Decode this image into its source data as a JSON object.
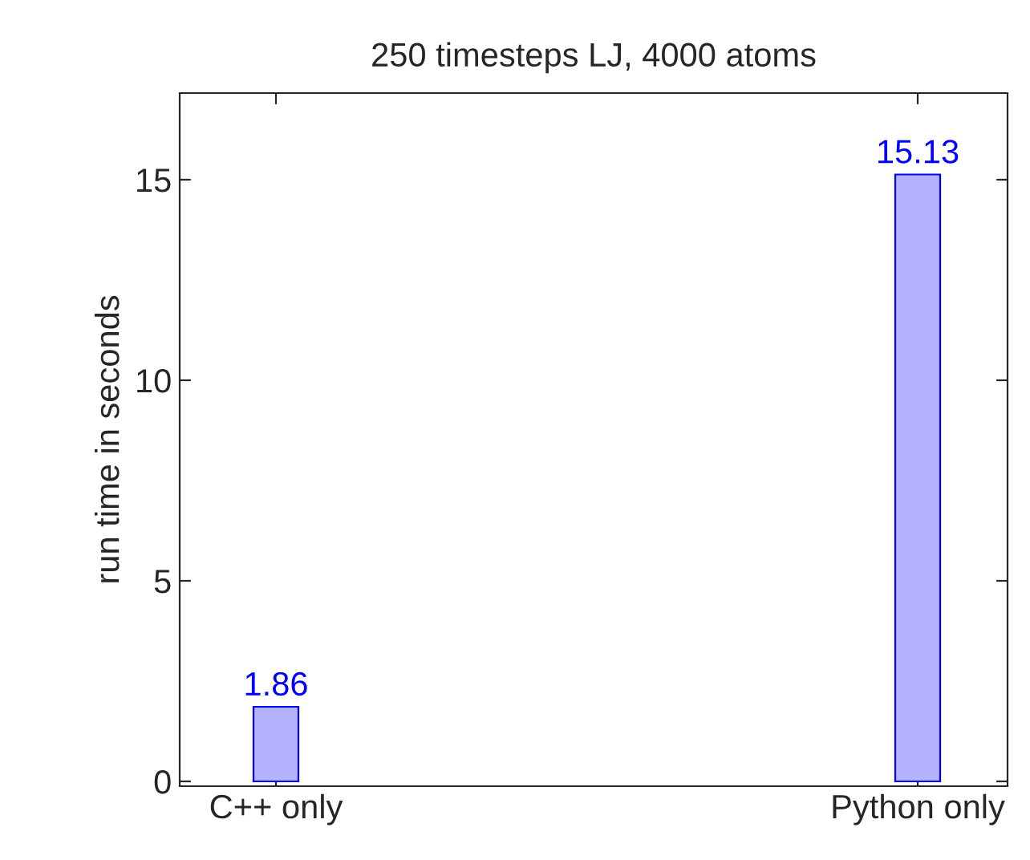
{
  "chart_data": {
    "type": "bar",
    "title": "250 timesteps LJ, 4000 atoms",
    "ylabel": "run time in seconds",
    "categories": [
      "C++ only",
      "Python only"
    ],
    "series": [
      {
        "color": "#b3b3ff",
        "values": [
          1.86,
          15.13
        ]
      }
    ],
    "ylim": [
      -0.12,
      17.16
    ],
    "yticks": [
      0,
      5,
      10,
      15
    ],
    "data_labels": true,
    "grid": false
  }
}
